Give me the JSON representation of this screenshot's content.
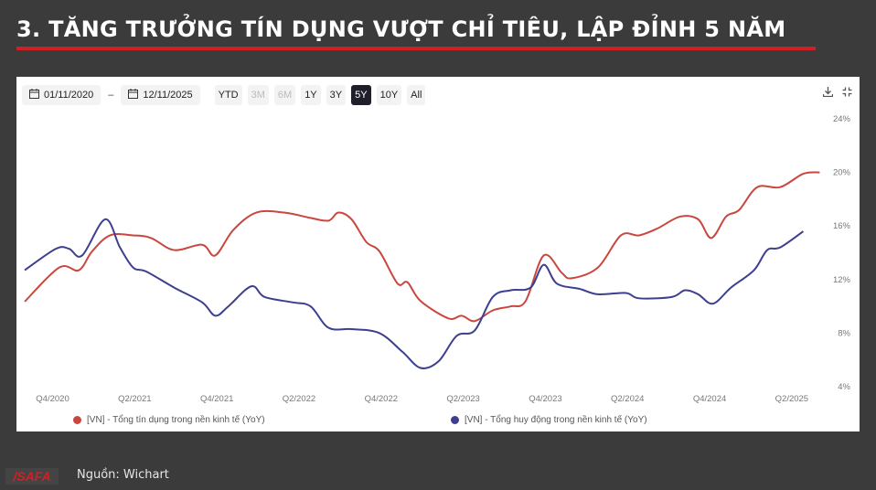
{
  "title": "3. TĂNG TRƯỞNG TÍN DỤNG VƯỢT CHỈ TIÊU, LẬP ĐỈNH 5 NĂM",
  "toolbar": {
    "start_date": "01/11/2020",
    "end_date": "12/11/2025",
    "separator": "–",
    "ranges": [
      {
        "label": "YTD",
        "state": "normal"
      },
      {
        "label": "3M",
        "state": "disabled"
      },
      {
        "label": "6M",
        "state": "disabled"
      },
      {
        "label": "1Y",
        "state": "normal"
      },
      {
        "label": "3Y",
        "state": "normal"
      },
      {
        "label": "5Y",
        "state": "active"
      },
      {
        "label": "10Y",
        "state": "normal"
      },
      {
        "label": "All",
        "state": "normal"
      }
    ],
    "download_icon": "download-icon",
    "fullscreen_icon": "fullscreen-icon"
  },
  "footer": {
    "logo_text": "SAFA",
    "source": "Nguồn: Wichart"
  },
  "chart_data": {
    "type": "line",
    "title": "",
    "xlabel": "",
    "ylabel": "",
    "xlim": [
      2020.66,
      2025.52
    ],
    "ylim": [
      4,
      24
    ],
    "y_ticks": [
      "4%",
      "8%",
      "12%",
      "16%",
      "20%",
      "24%"
    ],
    "y_tick_values": [
      4,
      8,
      12,
      16,
      20,
      24
    ],
    "y_axis_side": "right",
    "x_ticks": [
      "Q4/2020",
      "Q2/2021",
      "Q4/2021",
      "Q2/2022",
      "Q4/2022",
      "Q2/2023",
      "Q4/2023",
      "Q2/2024",
      "Q4/2024",
      "Q2/2025"
    ],
    "x_tick_values": [
      2020.83,
      2021.33,
      2021.83,
      2022.33,
      2022.83,
      2023.33,
      2023.83,
      2024.33,
      2024.83,
      2025.33
    ],
    "grid": false,
    "legend_position": "bottom",
    "series": [
      {
        "name": "[VN] - Tổng tín dụng trong nền kinh tế (YoY)",
        "color": "#c9473f",
        "points": [
          [
            2020.66,
            10.35
          ],
          [
            2020.87,
            12.9
          ],
          [
            2020.99,
            12.7
          ],
          [
            2021.07,
            14.1
          ],
          [
            2021.18,
            15.3
          ],
          [
            2021.32,
            15.3
          ],
          [
            2021.43,
            15.1
          ],
          [
            2021.57,
            14.2
          ],
          [
            2021.74,
            14.6
          ],
          [
            2021.82,
            13.8
          ],
          [
            2021.93,
            15.7
          ],
          [
            2022.07,
            17.0
          ],
          [
            2022.24,
            17.0
          ],
          [
            2022.4,
            16.6
          ],
          [
            2022.51,
            16.4
          ],
          [
            2022.57,
            17.0
          ],
          [
            2022.65,
            16.5
          ],
          [
            2022.74,
            14.8
          ],
          [
            2022.82,
            14.1
          ],
          [
            2022.93,
            11.7
          ],
          [
            2022.99,
            11.8
          ],
          [
            2023.07,
            10.4
          ],
          [
            2023.24,
            9.1
          ],
          [
            2023.32,
            9.3
          ],
          [
            2023.4,
            8.9
          ],
          [
            2023.51,
            9.7
          ],
          [
            2023.62,
            10.0
          ],
          [
            2023.71,
            10.4
          ],
          [
            2023.82,
            13.8
          ],
          [
            2023.93,
            12.5
          ],
          [
            2023.99,
            12.1
          ],
          [
            2024.15,
            12.9
          ],
          [
            2024.29,
            15.3
          ],
          [
            2024.4,
            15.3
          ],
          [
            2024.51,
            15.8
          ],
          [
            2024.65,
            16.7
          ],
          [
            2024.76,
            16.5
          ],
          [
            2024.84,
            15.1
          ],
          [
            2024.93,
            16.7
          ],
          [
            2025.01,
            17.2
          ],
          [
            2025.12,
            18.9
          ],
          [
            2025.26,
            18.9
          ],
          [
            2025.4,
            19.9
          ],
          [
            2025.5,
            20.0
          ]
        ]
      },
      {
        "name": "[VN] - Tổng huy động trong nền kinh tế (YoY)",
        "color": "#3d3f8f",
        "points": [
          [
            2020.66,
            12.7
          ],
          [
            2020.85,
            14.3
          ],
          [
            2020.93,
            14.3
          ],
          [
            2021.01,
            13.8
          ],
          [
            2021.15,
            16.5
          ],
          [
            2021.24,
            14.4
          ],
          [
            2021.32,
            12.9
          ],
          [
            2021.4,
            12.6
          ],
          [
            2021.57,
            11.4
          ],
          [
            2021.74,
            10.3
          ],
          [
            2021.82,
            9.3
          ],
          [
            2021.9,
            10.0
          ],
          [
            2022.04,
            11.5
          ],
          [
            2022.12,
            10.7
          ],
          [
            2022.29,
            10.3
          ],
          [
            2022.4,
            10.0
          ],
          [
            2022.51,
            8.4
          ],
          [
            2022.65,
            8.3
          ],
          [
            2022.82,
            8.0
          ],
          [
            2022.96,
            6.6
          ],
          [
            2023.07,
            5.4
          ],
          [
            2023.18,
            5.9
          ],
          [
            2023.29,
            7.8
          ],
          [
            2023.4,
            8.2
          ],
          [
            2023.51,
            10.7
          ],
          [
            2023.62,
            11.2
          ],
          [
            2023.74,
            11.4
          ],
          [
            2023.82,
            13.1
          ],
          [
            2023.9,
            11.7
          ],
          [
            2024.04,
            11.3
          ],
          [
            2024.15,
            10.9
          ],
          [
            2024.32,
            11.0
          ],
          [
            2024.4,
            10.6
          ],
          [
            2024.6,
            10.7
          ],
          [
            2024.68,
            11.2
          ],
          [
            2024.76,
            10.9
          ],
          [
            2024.85,
            10.2
          ],
          [
            2024.96,
            11.4
          ],
          [
            2025.1,
            12.7
          ],
          [
            2025.18,
            14.2
          ],
          [
            2025.26,
            14.4
          ],
          [
            2025.4,
            15.6
          ]
        ]
      }
    ]
  }
}
